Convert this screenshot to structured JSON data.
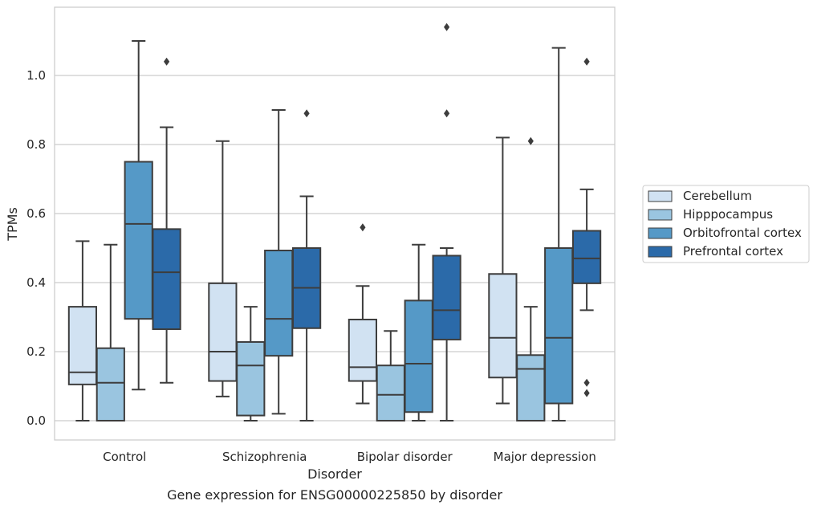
{
  "caption": "Gene expression for ENSG00000225850 by disorder",
  "chart_data": {
    "type": "box",
    "xlabel": "Disorder",
    "ylabel": "TPMs",
    "ylim": [
      -0.055,
      1.2
    ],
    "yticks": [
      0.0,
      0.2,
      0.4,
      0.6,
      0.8,
      1.0
    ],
    "ytick_labels": [
      "0.0",
      "0.2",
      "0.4",
      "0.6",
      "0.8",
      "1.0"
    ],
    "grid": "horizontal",
    "legend_position": "right",
    "categories": [
      "Control",
      "Schizophrenia",
      "Bipolar disorder",
      "Major depression"
    ],
    "series": [
      {
        "name": "Cerebellum",
        "color": "#d1e2f2",
        "boxes": [
          {
            "whislo": 0.0,
            "q1": 0.105,
            "med": 0.14,
            "q3": 0.33,
            "whishi": 0.52,
            "fliers": []
          },
          {
            "whislo": 0.07,
            "q1": 0.115,
            "med": 0.2,
            "q3": 0.398,
            "whishi": 0.81,
            "fliers": []
          },
          {
            "whislo": 0.05,
            "q1": 0.115,
            "med": 0.155,
            "q3": 0.293,
            "whishi": 0.39,
            "fliers": [
              0.56
            ]
          },
          {
            "whislo": 0.05,
            "q1": 0.125,
            "med": 0.24,
            "q3": 0.425,
            "whishi": 0.82,
            "fliers": []
          }
        ]
      },
      {
        "name": "Hipppocampus",
        "color": "#9ac5e0",
        "boxes": [
          {
            "whislo": 0.0,
            "q1": 0.0,
            "med": 0.11,
            "q3": 0.21,
            "whishi": 0.51,
            "fliers": []
          },
          {
            "whislo": 0.0,
            "q1": 0.015,
            "med": 0.16,
            "q3": 0.228,
            "whishi": 0.33,
            "fliers": []
          },
          {
            "whislo": 0.0,
            "q1": 0.0,
            "med": 0.075,
            "q3": 0.16,
            "whishi": 0.26,
            "fliers": []
          },
          {
            "whislo": 0.0,
            "q1": 0.0,
            "med": 0.15,
            "q3": 0.19,
            "whishi": 0.33,
            "fliers": [
              0.81
            ]
          }
        ]
      },
      {
        "name": "Orbitofrontal cortex",
        "color": "#5599c7",
        "boxes": [
          {
            "whislo": 0.09,
            "q1": 0.295,
            "med": 0.57,
            "q3": 0.75,
            "whishi": 1.1,
            "fliers": []
          },
          {
            "whislo": 0.02,
            "q1": 0.188,
            "med": 0.295,
            "q3": 0.493,
            "whishi": 0.9,
            "fliers": []
          },
          {
            "whislo": 0.0,
            "q1": 0.025,
            "med": 0.165,
            "q3": 0.348,
            "whishi": 0.51,
            "fliers": []
          },
          {
            "whislo": 0.0,
            "q1": 0.05,
            "med": 0.24,
            "q3": 0.5,
            "whishi": 1.08,
            "fliers": []
          }
        ]
      },
      {
        "name": "Prefrontal cortex",
        "color": "#2b6aa9",
        "boxes": [
          {
            "whislo": 0.11,
            "q1": 0.265,
            "med": 0.43,
            "q3": 0.555,
            "whishi": 0.85,
            "fliers": [
              1.04
            ]
          },
          {
            "whislo": 0.0,
            "q1": 0.268,
            "med": 0.385,
            "q3": 0.5,
            "whishi": 0.65,
            "fliers": [
              0.89
            ]
          },
          {
            "whislo": 0.0,
            "q1": 0.235,
            "med": 0.32,
            "q3": 0.478,
            "whishi": 0.5,
            "fliers": [
              0.89,
              1.14
            ]
          },
          {
            "whislo": 0.32,
            "q1": 0.398,
            "med": 0.47,
            "q3": 0.55,
            "whishi": 0.67,
            "fliers": [
              0.08,
              0.11,
              1.04
            ]
          }
        ]
      }
    ]
  }
}
